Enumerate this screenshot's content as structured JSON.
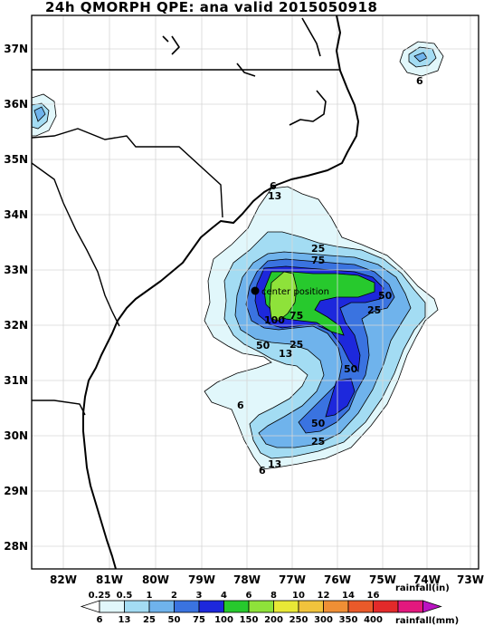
{
  "title": "24h QMORPH QPE: ana valid 2015050918",
  "lat_labels": [
    "37N",
    "36N",
    "35N",
    "34N",
    "33N",
    "32N",
    "31N",
    "30N",
    "29N",
    "28N"
  ],
  "lon_labels": [
    "82W",
    "81W",
    "80W",
    "79W",
    "78W",
    "77W",
    "76W",
    "75W",
    "74W",
    "73W"
  ],
  "center_label": "center position",
  "contour_labels": [
    "6",
    "13",
    "25",
    "75",
    "50",
    "25",
    "100",
    "75",
    "50",
    "13",
    "25",
    "50",
    "6",
    "50",
    "25",
    "13",
    "6",
    "6"
  ],
  "colorbar": {
    "unit_in": "rainfall(in)",
    "unit_mm": "rainfall(mm)",
    "inch_ticks": [
      "0.25",
      "0.5",
      "1",
      "2",
      "3",
      "4",
      "6",
      "8",
      "10",
      "12",
      "14",
      "16"
    ],
    "mm_ticks": [
      "6",
      "13",
      "25",
      "50",
      "75",
      "100",
      "150",
      "200",
      "250",
      "300",
      "350",
      "400"
    ],
    "colors": [
      "#ffffff",
      "#e1f7fb",
      "#a3dcf3",
      "#6fb3ec",
      "#3a73e0",
      "#1d28dc",
      "#27c92d",
      "#8ee23a",
      "#e8e836",
      "#f1c33c",
      "#ef8f35",
      "#ea5a2a",
      "#e32a2a",
      "#e3187e",
      "#bb13c3"
    ]
  },
  "chart_data": {
    "type": "contour-map",
    "title": "24h QMORPH QPE: ana valid 2015050918",
    "lon_range": [
      -82.7,
      -72.9
    ],
    "lat_range": [
      27.6,
      37.6
    ],
    "center_position": {
      "lon": -77.9,
      "lat": 32.6
    },
    "thresholds_mm": [
      6,
      13,
      25,
      50,
      75,
      100,
      150,
      200,
      250,
      300,
      350,
      400
    ],
    "thresholds_in": [
      0.25,
      0.5,
      1,
      2,
      3,
      4,
      6,
      8,
      10,
      12,
      14,
      16
    ]
  }
}
